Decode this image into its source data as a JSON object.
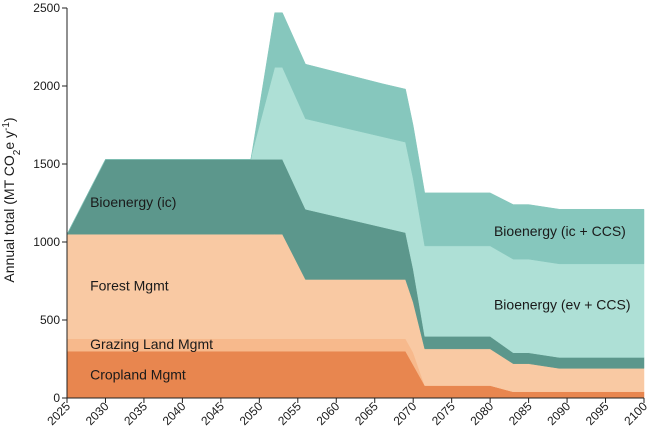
{
  "chart_data": {
    "type": "area",
    "stacked": true,
    "ylabel": {
      "main": "Annual total (MT CO",
      "sub": "2",
      "mid": "e y",
      "sup": "-1",
      "end": ")"
    },
    "xlim": [
      2025,
      2100
    ],
    "ylim": [
      0,
      2500
    ],
    "xticks": [
      2025,
      2030,
      2035,
      2040,
      2045,
      2050,
      2055,
      2060,
      2065,
      2070,
      2075,
      2080,
      2085,
      2090,
      2095,
      2100
    ],
    "yticks": [
      0,
      500,
      1000,
      1500,
      2000,
      2500
    ],
    "grid": false,
    "series": [
      {
        "name": "Cropland Mgmt",
        "color": "#e8864f",
        "points": [
          [
            2025,
            300
          ],
          [
            2069,
            300
          ],
          [
            2071.5,
            80
          ],
          [
            2080,
            80
          ],
          [
            2083,
            40
          ],
          [
            2100,
            40
          ]
        ]
      },
      {
        "name": "Grazing Land Mgmt",
        "color": "#f7b98c",
        "points": [
          [
            2025,
            80
          ],
          [
            2069,
            80
          ],
          [
            2070,
            80
          ],
          [
            2071.5,
            0
          ],
          [
            2100,
            0
          ]
        ]
      },
      {
        "name": "Forest Mgmt",
        "color": "#f9c9a3",
        "points": [
          [
            2025,
            670
          ],
          [
            2053,
            670
          ],
          [
            2056,
            380
          ],
          [
            2069,
            380
          ],
          [
            2071.5,
            235
          ],
          [
            2080,
            235
          ],
          [
            2083,
            180
          ],
          [
            2085,
            180
          ],
          [
            2089,
            150
          ],
          [
            2100,
            150
          ]
        ]
      },
      {
        "name": "Bioenergy (ic)",
        "color": "#5c978c",
        "points": [
          [
            2025,
            0
          ],
          [
            2030,
            480
          ],
          [
            2053,
            480
          ],
          [
            2056,
            450
          ],
          [
            2069,
            300
          ],
          [
            2071.5,
            80
          ],
          [
            2080,
            80
          ],
          [
            2083,
            70
          ],
          [
            2100,
            70
          ]
        ]
      },
      {
        "name": "Bioenergy (ev + CCS)",
        "color": "#aee0d6",
        "points": [
          [
            2048.9,
            0
          ],
          [
            2049,
            30
          ],
          [
            2052,
            590
          ],
          [
            2053,
            590
          ],
          [
            2056,
            580
          ],
          [
            2066,
            580
          ],
          [
            2069,
            580
          ],
          [
            2071.5,
            580
          ],
          [
            2080,
            580
          ],
          [
            2083,
            600
          ],
          [
            2100,
            600
          ]
        ]
      },
      {
        "name": "Bioenergy (ic + CCS)",
        "color": "#86c7bd",
        "points": [
          [
            2048.9,
            0
          ],
          [
            2049,
            0
          ],
          [
            2052,
            350
          ],
          [
            2053,
            350
          ],
          [
            2056,
            350
          ],
          [
            2066,
            340
          ],
          [
            2069,
            340
          ],
          [
            2071.5,
            340
          ],
          [
            2080,
            340
          ],
          [
            2083,
            350
          ],
          [
            2100,
            350
          ]
        ]
      }
    ],
    "labels": [
      {
        "text": "Cropland Mgmt",
        "x": 2028,
        "y": 150
      },
      {
        "text": "Grazing Land Mgmt",
        "x": 2028,
        "y": 345
      },
      {
        "text": "Forest Mgmt",
        "x": 2028,
        "y": 720
      },
      {
        "text": "Bioenergy (ic)",
        "x": 2028,
        "y": 1255
      },
      {
        "text": "Bioenergy (ev + CCS)",
        "x": 2080.5,
        "y": 600
      },
      {
        "text": "Bioenergy (ic + CCS)",
        "x": 2080.5,
        "y": 1070
      }
    ]
  }
}
